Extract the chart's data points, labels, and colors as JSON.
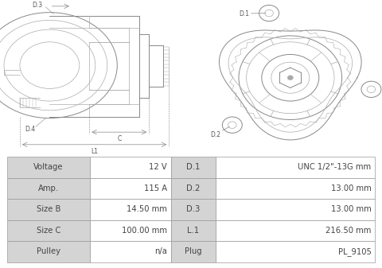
{
  "table_rows": [
    {
      "col1": "Voltage",
      "col2": "12 V",
      "col3": "D.1",
      "col4": "UNC 1/2\"-13G mm"
    },
    {
      "col1": "Amp.",
      "col2": "115 A",
      "col3": "D.2",
      "col4": "13.00 mm"
    },
    {
      "col1": "Size B",
      "col2": "14.50 mm",
      "col3": "D.3",
      "col4": "13.00 mm"
    },
    {
      "col1": "Size C",
      "col2": "100.00 mm",
      "col3": "L.1",
      "col4": "216.50 mm"
    },
    {
      "col1": "Pulley",
      "col2": "n/a",
      "col3": "Plug",
      "col4": "PL_9105"
    }
  ],
  "table_bg_col1": "#d4d4d4",
  "table_bg_col2": "#ffffff",
  "table_bg_col3": "#d4d4d4",
  "table_bg_col4": "#ffffff",
  "table_border": "#999999",
  "text_color": "#444444",
  "bg_color": "#ffffff",
  "lc": "#aaaaaa",
  "lc_dark": "#888888",
  "font_size_table": 7.2,
  "font_size_label": 5.5
}
